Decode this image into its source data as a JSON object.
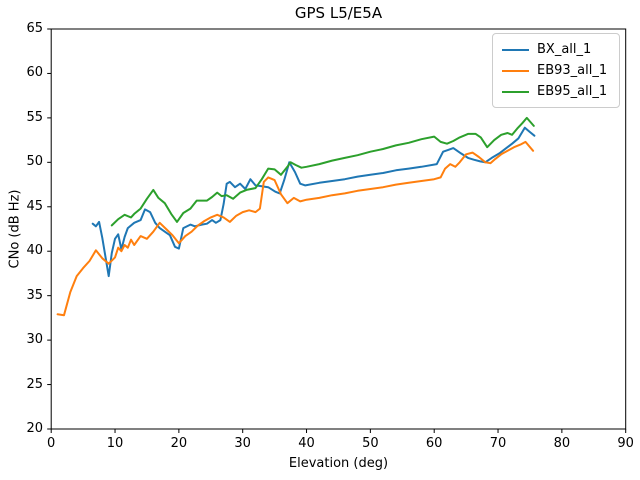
{
  "chart_data": {
    "type": "line",
    "title": "GPS L5/E5A",
    "xlabel": "Elevation (deg)",
    "ylabel": "CNo (dB Hz)",
    "xlim": [
      0,
      90
    ],
    "ylim": [
      20,
      65
    ],
    "xticks": [
      0,
      10,
      20,
      30,
      40,
      50,
      60,
      70,
      80,
      90
    ],
    "yticks": [
      20,
      25,
      30,
      35,
      40,
      45,
      50,
      55,
      60,
      65
    ],
    "grid": false,
    "legend_position": "upper right",
    "series": [
      {
        "name": "BX_all_1",
        "color": "#1f77b4",
        "points": [
          [
            6.5,
            43.1
          ],
          [
            7,
            42.8
          ],
          [
            7.5,
            43.3
          ],
          [
            8,
            41.5
          ],
          [
            9,
            37.2
          ],
          [
            9.5,
            39.8
          ],
          [
            10,
            41.4
          ],
          [
            10.5,
            41.9
          ],
          [
            11,
            40.2
          ],
          [
            11.5,
            41.6
          ],
          [
            12,
            42.6
          ],
          [
            13,
            43.2
          ],
          [
            14,
            43.5
          ],
          [
            14.7,
            44.7
          ],
          [
            15.5,
            44.4
          ],
          [
            16.3,
            43.2
          ],
          [
            17,
            42.6
          ],
          [
            18,
            42.1
          ],
          [
            18.6,
            41.8
          ],
          [
            19.4,
            40.5
          ],
          [
            20,
            40.3
          ],
          [
            20.7,
            42.6
          ],
          [
            21.8,
            43.0
          ],
          [
            22.5,
            42.8
          ],
          [
            23.6,
            43.0
          ],
          [
            24.4,
            43.1
          ],
          [
            25.2,
            43.5
          ],
          [
            25.8,
            43.2
          ],
          [
            26.5,
            43.5
          ],
          [
            27,
            45.3
          ],
          [
            27.5,
            47.6
          ],
          [
            28,
            47.8
          ],
          [
            28.8,
            47.2
          ],
          [
            29.6,
            47.6
          ],
          [
            30.4,
            47.0
          ],
          [
            31.2,
            48.1
          ],
          [
            32,
            47.4
          ],
          [
            33,
            47.3
          ],
          [
            34,
            47.2
          ],
          [
            35.1,
            46.7
          ],
          [
            35.8,
            46.5
          ],
          [
            36.5,
            48.0
          ],
          [
            37.3,
            50.0
          ],
          [
            38.2,
            48.9
          ],
          [
            39,
            47.6
          ],
          [
            39.8,
            47.4
          ],
          [
            42,
            47.7
          ],
          [
            44,
            47.9
          ],
          [
            46,
            48.1
          ],
          [
            48,
            48.4
          ],
          [
            50,
            48.6
          ],
          [
            52,
            48.8
          ],
          [
            54,
            49.1
          ],
          [
            56,
            49.3
          ],
          [
            58,
            49.5
          ],
          [
            60.4,
            49.8
          ],
          [
            61.4,
            51.2
          ],
          [
            62.2,
            51.4
          ],
          [
            63,
            51.6
          ],
          [
            64.2,
            51.0
          ],
          [
            65.3,
            50.5
          ],
          [
            66.2,
            50.3
          ],
          [
            67.2,
            50.1
          ],
          [
            68,
            50.0
          ],
          [
            69,
            50.5
          ],
          [
            70.2,
            51.0
          ],
          [
            71.3,
            51.6
          ],
          [
            72.2,
            52.1
          ],
          [
            73.2,
            52.7
          ],
          [
            74.2,
            53.9
          ],
          [
            75,
            53.4
          ],
          [
            75.7,
            53.0
          ]
        ]
      },
      {
        "name": "EB93_all_1",
        "color": "#ff7f0e",
        "points": [
          [
            1,
            32.9
          ],
          [
            2,
            32.8
          ],
          [
            3,
            35.4
          ],
          [
            4,
            37.2
          ],
          [
            5,
            38.1
          ],
          [
            6,
            38.9
          ],
          [
            7,
            40.1
          ],
          [
            8,
            39.2
          ],
          [
            9,
            38.6
          ],
          [
            10,
            39.3
          ],
          [
            10.5,
            40.4
          ],
          [
            11,
            40.0
          ],
          [
            11.5,
            40.7
          ],
          [
            12,
            40.4
          ],
          [
            12.5,
            41.3
          ],
          [
            13,
            40.7
          ],
          [
            14,
            41.7
          ],
          [
            15,
            41.4
          ],
          [
            16,
            42.2
          ],
          [
            17,
            43.2
          ],
          [
            18,
            42.5
          ],
          [
            19,
            41.8
          ],
          [
            20,
            40.9
          ],
          [
            21,
            41.7
          ],
          [
            22,
            42.2
          ],
          [
            23,
            42.9
          ],
          [
            24,
            43.4
          ],
          [
            25,
            43.8
          ],
          [
            26,
            44.1
          ],
          [
            27,
            43.8
          ],
          [
            28,
            43.3
          ],
          [
            29,
            44.0
          ],
          [
            30,
            44.4
          ],
          [
            31,
            44.6
          ],
          [
            32,
            44.4
          ],
          [
            32.7,
            44.8
          ],
          [
            33.3,
            47.8
          ],
          [
            34,
            48.3
          ],
          [
            35,
            48.0
          ],
          [
            36,
            46.4
          ],
          [
            37,
            45.4
          ],
          [
            38,
            46.0
          ],
          [
            39,
            45.6
          ],
          [
            40,
            45.8
          ],
          [
            42,
            46.0
          ],
          [
            44,
            46.3
          ],
          [
            46,
            46.5
          ],
          [
            48,
            46.8
          ],
          [
            50,
            47.0
          ],
          [
            52,
            47.2
          ],
          [
            54,
            47.5
          ],
          [
            56,
            47.7
          ],
          [
            58,
            47.9
          ],
          [
            60,
            48.1
          ],
          [
            61,
            48.3
          ],
          [
            61.7,
            49.3
          ],
          [
            62.5,
            49.8
          ],
          [
            63.3,
            49.5
          ],
          [
            64,
            50.0
          ],
          [
            65,
            50.9
          ],
          [
            66,
            51.1
          ],
          [
            67,
            50.6
          ],
          [
            68,
            50.0
          ],
          [
            68.8,
            49.9
          ],
          [
            69.6,
            50.4
          ],
          [
            70.5,
            50.9
          ],
          [
            71.5,
            51.3
          ],
          [
            72.5,
            51.7
          ],
          [
            73.5,
            52.0
          ],
          [
            74.3,
            52.3
          ],
          [
            75.5,
            51.3
          ]
        ]
      },
      {
        "name": "EB95_all_1",
        "color": "#2ca02c",
        "points": [
          [
            9.5,
            42.9
          ],
          [
            10.5,
            43.6
          ],
          [
            11.5,
            44.1
          ],
          [
            12.5,
            43.8
          ],
          [
            13,
            44.2
          ],
          [
            14,
            44.8
          ],
          [
            15,
            45.9
          ],
          [
            16,
            46.9
          ],
          [
            16.8,
            46.0
          ],
          [
            17.8,
            45.4
          ],
          [
            18.8,
            44.2
          ],
          [
            19.7,
            43.3
          ],
          [
            20.7,
            44.3
          ],
          [
            21.8,
            44.8
          ],
          [
            22.8,
            45.7
          ],
          [
            24.4,
            45.7
          ],
          [
            25.2,
            46.1
          ],
          [
            26,
            46.6
          ],
          [
            26.7,
            46.2
          ],
          [
            27.5,
            46.3
          ],
          [
            28.5,
            45.9
          ],
          [
            29.6,
            46.6
          ],
          [
            30.6,
            46.9
          ],
          [
            32,
            47.1
          ],
          [
            33,
            48.1
          ],
          [
            34,
            49.3
          ],
          [
            35,
            49.2
          ],
          [
            36,
            48.6
          ],
          [
            37,
            49.5
          ],
          [
            37.5,
            50.0
          ],
          [
            38.3,
            49.7
          ],
          [
            39.2,
            49.4
          ],
          [
            40,
            49.5
          ],
          [
            42,
            49.8
          ],
          [
            44,
            50.2
          ],
          [
            46,
            50.5
          ],
          [
            48,
            50.8
          ],
          [
            50,
            51.2
          ],
          [
            52,
            51.5
          ],
          [
            54,
            51.9
          ],
          [
            56,
            52.2
          ],
          [
            58,
            52.6
          ],
          [
            60,
            52.9
          ],
          [
            61,
            52.3
          ],
          [
            62,
            52.1
          ],
          [
            63,
            52.4
          ],
          [
            64,
            52.8
          ],
          [
            65.3,
            53.2
          ],
          [
            66.5,
            53.2
          ],
          [
            67.3,
            52.8
          ],
          [
            68.3,
            51.7
          ],
          [
            69.4,
            52.5
          ],
          [
            70.5,
            53.1
          ],
          [
            71.5,
            53.3
          ],
          [
            72.2,
            53.1
          ],
          [
            73,
            53.8
          ],
          [
            73.8,
            54.4
          ],
          [
            74.5,
            55.0
          ],
          [
            75.6,
            54.1
          ]
        ]
      }
    ]
  }
}
